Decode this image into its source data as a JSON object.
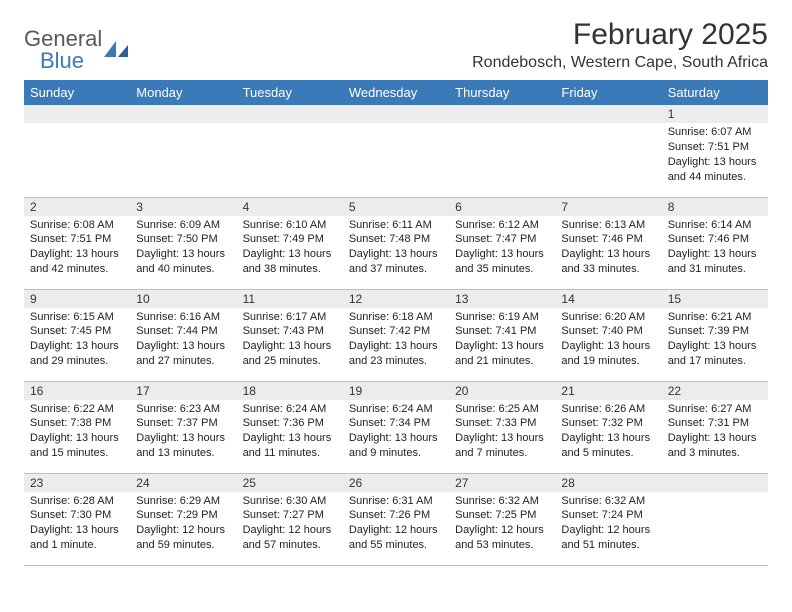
{
  "brand": {
    "name_a": "General",
    "name_b": "Blue",
    "logo_color": "#3a7ab8",
    "text_color_a": "#555a5e",
    "text_color_b": "#3a7ab8"
  },
  "header": {
    "month_title": "February 2025",
    "location": "Rondebosch, Western Cape, South Africa"
  },
  "style": {
    "header_bg": "#3a7ab8",
    "header_fg": "#ffffff",
    "daynum_bg": "#ececec",
    "border_color": "#bfbfbf",
    "page_bg": "#ffffff"
  },
  "weekdays": [
    "Sunday",
    "Monday",
    "Tuesday",
    "Wednesday",
    "Thursday",
    "Friday",
    "Saturday"
  ],
  "weeks": [
    [
      {
        "day": "",
        "lines": []
      },
      {
        "day": "",
        "lines": []
      },
      {
        "day": "",
        "lines": []
      },
      {
        "day": "",
        "lines": []
      },
      {
        "day": "",
        "lines": []
      },
      {
        "day": "",
        "lines": []
      },
      {
        "day": "1",
        "lines": [
          "Sunrise: 6:07 AM",
          "Sunset: 7:51 PM",
          "Daylight: 13 hours and 44 minutes."
        ]
      }
    ],
    [
      {
        "day": "2",
        "lines": [
          "Sunrise: 6:08 AM",
          "Sunset: 7:51 PM",
          "Daylight: 13 hours and 42 minutes."
        ]
      },
      {
        "day": "3",
        "lines": [
          "Sunrise: 6:09 AM",
          "Sunset: 7:50 PM",
          "Daylight: 13 hours and 40 minutes."
        ]
      },
      {
        "day": "4",
        "lines": [
          "Sunrise: 6:10 AM",
          "Sunset: 7:49 PM",
          "Daylight: 13 hours and 38 minutes."
        ]
      },
      {
        "day": "5",
        "lines": [
          "Sunrise: 6:11 AM",
          "Sunset: 7:48 PM",
          "Daylight: 13 hours and 37 minutes."
        ]
      },
      {
        "day": "6",
        "lines": [
          "Sunrise: 6:12 AM",
          "Sunset: 7:47 PM",
          "Daylight: 13 hours and 35 minutes."
        ]
      },
      {
        "day": "7",
        "lines": [
          "Sunrise: 6:13 AM",
          "Sunset: 7:46 PM",
          "Daylight: 13 hours and 33 minutes."
        ]
      },
      {
        "day": "8",
        "lines": [
          "Sunrise: 6:14 AM",
          "Sunset: 7:46 PM",
          "Daylight: 13 hours and 31 minutes."
        ]
      }
    ],
    [
      {
        "day": "9",
        "lines": [
          "Sunrise: 6:15 AM",
          "Sunset: 7:45 PM",
          "Daylight: 13 hours and 29 minutes."
        ]
      },
      {
        "day": "10",
        "lines": [
          "Sunrise: 6:16 AM",
          "Sunset: 7:44 PM",
          "Daylight: 13 hours and 27 minutes."
        ]
      },
      {
        "day": "11",
        "lines": [
          "Sunrise: 6:17 AM",
          "Sunset: 7:43 PM",
          "Daylight: 13 hours and 25 minutes."
        ]
      },
      {
        "day": "12",
        "lines": [
          "Sunrise: 6:18 AM",
          "Sunset: 7:42 PM",
          "Daylight: 13 hours and 23 minutes."
        ]
      },
      {
        "day": "13",
        "lines": [
          "Sunrise: 6:19 AM",
          "Sunset: 7:41 PM",
          "Daylight: 13 hours and 21 minutes."
        ]
      },
      {
        "day": "14",
        "lines": [
          "Sunrise: 6:20 AM",
          "Sunset: 7:40 PM",
          "Daylight: 13 hours and 19 minutes."
        ]
      },
      {
        "day": "15",
        "lines": [
          "Sunrise: 6:21 AM",
          "Sunset: 7:39 PM",
          "Daylight: 13 hours and 17 minutes."
        ]
      }
    ],
    [
      {
        "day": "16",
        "lines": [
          "Sunrise: 6:22 AM",
          "Sunset: 7:38 PM",
          "Daylight: 13 hours and 15 minutes."
        ]
      },
      {
        "day": "17",
        "lines": [
          "Sunrise: 6:23 AM",
          "Sunset: 7:37 PM",
          "Daylight: 13 hours and 13 minutes."
        ]
      },
      {
        "day": "18",
        "lines": [
          "Sunrise: 6:24 AM",
          "Sunset: 7:36 PM",
          "Daylight: 13 hours and 11 minutes."
        ]
      },
      {
        "day": "19",
        "lines": [
          "Sunrise: 6:24 AM",
          "Sunset: 7:34 PM",
          "Daylight: 13 hours and 9 minutes."
        ]
      },
      {
        "day": "20",
        "lines": [
          "Sunrise: 6:25 AM",
          "Sunset: 7:33 PM",
          "Daylight: 13 hours and 7 minutes."
        ]
      },
      {
        "day": "21",
        "lines": [
          "Sunrise: 6:26 AM",
          "Sunset: 7:32 PM",
          "Daylight: 13 hours and 5 minutes."
        ]
      },
      {
        "day": "22",
        "lines": [
          "Sunrise: 6:27 AM",
          "Sunset: 7:31 PM",
          "Daylight: 13 hours and 3 minutes."
        ]
      }
    ],
    [
      {
        "day": "23",
        "lines": [
          "Sunrise: 6:28 AM",
          "Sunset: 7:30 PM",
          "Daylight: 13 hours and 1 minute."
        ]
      },
      {
        "day": "24",
        "lines": [
          "Sunrise: 6:29 AM",
          "Sunset: 7:29 PM",
          "Daylight: 12 hours and 59 minutes."
        ]
      },
      {
        "day": "25",
        "lines": [
          "Sunrise: 6:30 AM",
          "Sunset: 7:27 PM",
          "Daylight: 12 hours and 57 minutes."
        ]
      },
      {
        "day": "26",
        "lines": [
          "Sunrise: 6:31 AM",
          "Sunset: 7:26 PM",
          "Daylight: 12 hours and 55 minutes."
        ]
      },
      {
        "day": "27",
        "lines": [
          "Sunrise: 6:32 AM",
          "Sunset: 7:25 PM",
          "Daylight: 12 hours and 53 minutes."
        ]
      },
      {
        "day": "28",
        "lines": [
          "Sunrise: 6:32 AM",
          "Sunset: 7:24 PM",
          "Daylight: 12 hours and 51 minutes."
        ]
      },
      {
        "day": "",
        "lines": []
      }
    ]
  ]
}
